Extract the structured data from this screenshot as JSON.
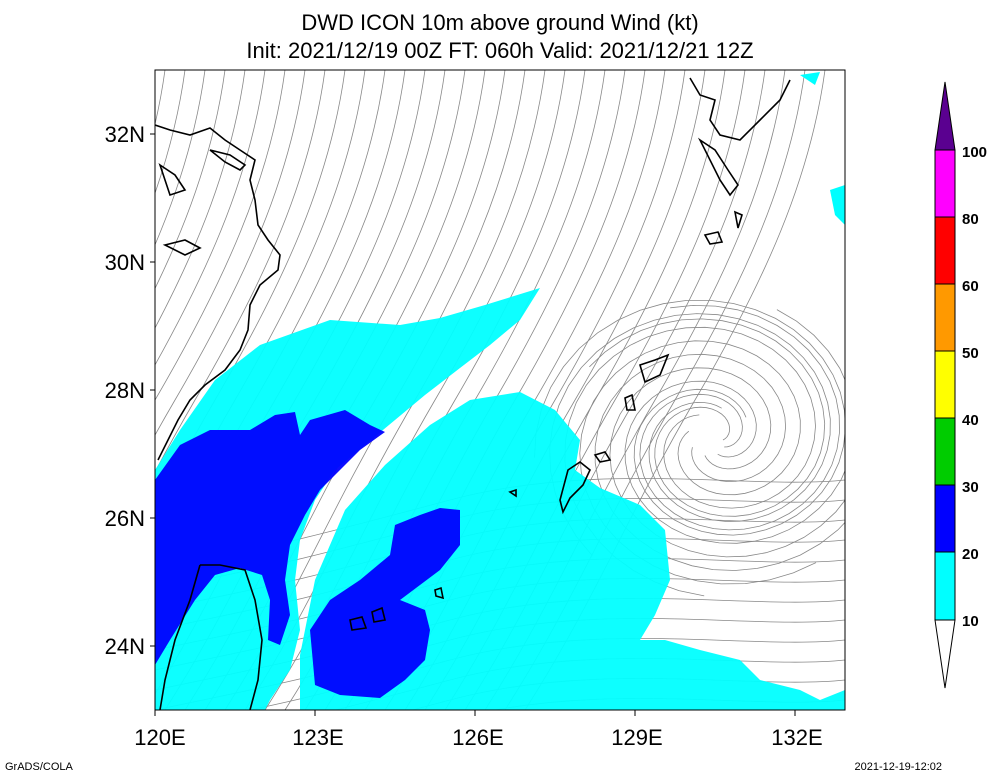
{
  "title": {
    "line1": "DWD ICON 10m above ground Wind (kt)",
    "line2": "Init: 2021/12/19 00Z  FT: 060h  Valid: 2021/12/21 12Z"
  },
  "axes": {
    "y_labels": [
      "32N",
      "30N",
      "28N",
      "26N",
      "24N"
    ],
    "x_labels": [
      "120E",
      "123E",
      "126E",
      "129E",
      "132E"
    ]
  },
  "colorbar": {
    "levels": [
      "10",
      "20",
      "30",
      "40",
      "50",
      "60",
      "80",
      "100"
    ],
    "colors": [
      "#ffffff",
      "#00ffff",
      "#0000ff",
      "#00cc00",
      "#ffff00",
      "#ff9900",
      "#ff0000",
      "#ff00ff",
      "#5a0090"
    ]
  },
  "wind_colors": {
    "band_10_20": "#00ffff",
    "band_20_30": "#0000ff",
    "streamline": "#888888",
    "coast": "#000000"
  },
  "footer": {
    "left": "GrADS/COLA",
    "right": "2021-12-19-12:02"
  }
}
